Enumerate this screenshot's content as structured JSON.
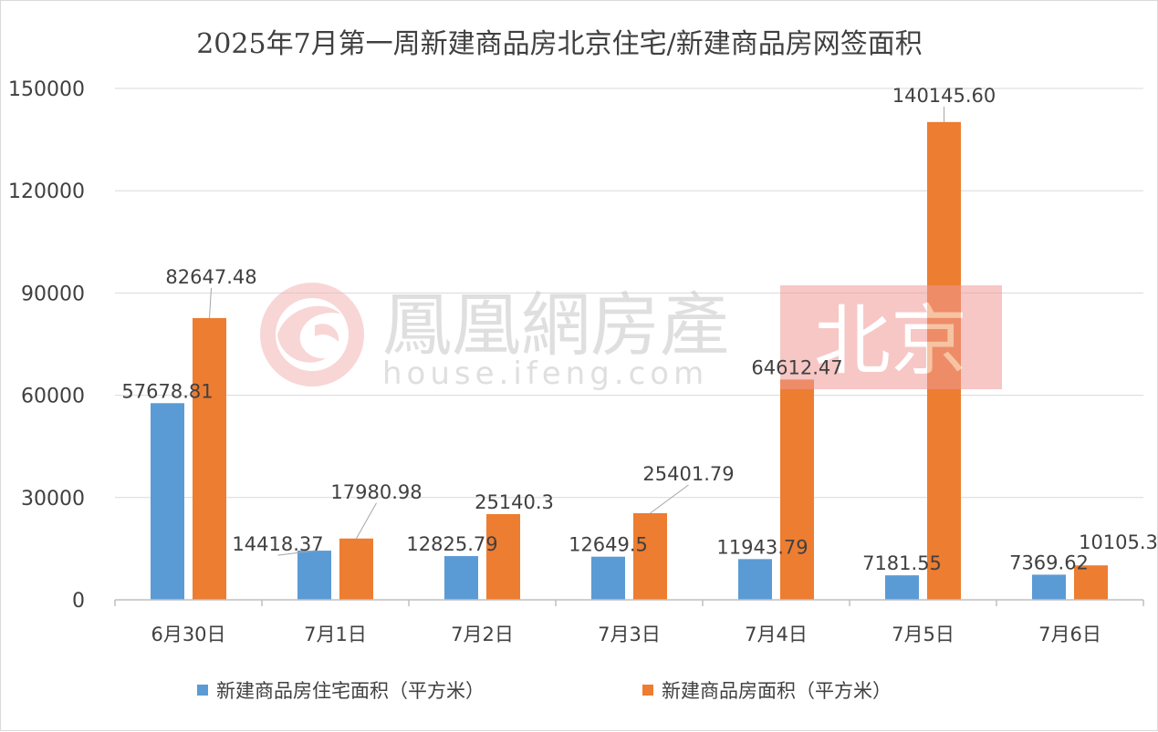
{
  "chart_data": {
    "type": "bar",
    "title": "2025年7月第一周新建商品房北京住宅/新建商品房网签面积",
    "categories": [
      "6月30日",
      "7月1日",
      "7月2日",
      "7月3日",
      "7月4日",
      "7月5日",
      "7月6日"
    ],
    "series": [
      {
        "name": "新建商品房住宅面积（平方米）",
        "color": "#5b9bd5",
        "values": [
          57678.81,
          14418.37,
          12825.79,
          12649.5,
          11943.79,
          7181.55,
          7369.62
        ],
        "labels": [
          "57678.81",
          "14418.37",
          "12825.79",
          "12649.5",
          "11943.79",
          "7181.55",
          "7369.62"
        ]
      },
      {
        "name": "新建商品房面积（平方米）",
        "color": "#ed7d31",
        "values": [
          82647.48,
          17980.98,
          25140.3,
          25401.79,
          64612.47,
          140145.6,
          10105.3
        ],
        "labels": [
          "82647.48",
          "17980.98",
          "25140.3",
          "25401.79",
          "64612.47",
          "140145.60",
          "10105.3"
        ]
      }
    ],
    "yticks": [
      "0",
      "30000",
      "60000",
      "90000",
      "120000",
      "150000"
    ],
    "ylim": [
      0,
      150000
    ],
    "grid": true,
    "legend": "bottom"
  },
  "watermark": {
    "brand": "鳳凰網房產",
    "url": "house.ifeng.com",
    "city": "北京",
    "logo": "ifeng-phoenix-logo"
  }
}
